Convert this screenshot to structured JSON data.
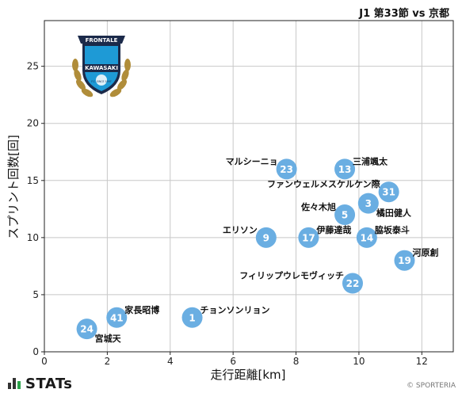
{
  "header": {
    "match": "J1 第33節 vs 京都"
  },
  "branding": {
    "stats": "STATs",
    "credit": "© SPORTERIA"
  },
  "crest": {
    "top_text": "FRONTALE",
    "name": "KAWASAKI",
    "small": "F.C. SINCE 1997"
  },
  "colors": {
    "point": "#6aaee2",
    "grid": "#c8c8c8",
    "axis": "#222222",
    "crest_blue": "#1e9ad6",
    "crest_navy": "#1b2a4a",
    "crest_gold": "#b08d3a"
  },
  "chart_data": {
    "type": "scatter",
    "xlabel": "走行距離[km]",
    "ylabel": "スプリント回数[回]",
    "xlim": [
      0,
      13
    ],
    "ylim": [
      0,
      29
    ],
    "xticks": [
      0,
      2,
      4,
      6,
      8,
      10,
      12
    ],
    "yticks": [
      0,
      5,
      10,
      15,
      20,
      25
    ],
    "grid": true,
    "points": [
      {
        "number": "23",
        "name": "マルシーニョ",
        "x": 7.7,
        "y": 16,
        "label_pos": "left-up"
      },
      {
        "number": "13",
        "name": "三浦颯太",
        "x": 9.55,
        "y": 16,
        "label_pos": "right-up"
      },
      {
        "number": "31",
        "name": "ファンウェルメスケルケン際",
        "x": 10.95,
        "y": 14,
        "label_pos": "left-up"
      },
      {
        "number": "3",
        "name": "橘田健人",
        "x": 10.3,
        "y": 13,
        "label_pos": "right-down"
      },
      {
        "number": "5",
        "name": "佐々木旭",
        "x": 9.55,
        "y": 12,
        "label_pos": "left-up"
      },
      {
        "number": "9",
        "name": "エリソン",
        "x": 7.05,
        "y": 10,
        "label_pos": "left-up"
      },
      {
        "number": "17",
        "name": "伊藤達哉",
        "x": 8.4,
        "y": 10,
        "label_pos": "right-up"
      },
      {
        "number": "14",
        "name": "脇坂泰斗",
        "x": 10.25,
        "y": 10,
        "label_pos": "right-up"
      },
      {
        "number": "19",
        "name": "河原創",
        "x": 11.45,
        "y": 8,
        "label_pos": "right-up"
      },
      {
        "number": "22",
        "name": "フィリップウレモヴィッチ",
        "x": 9.8,
        "y": 6,
        "label_pos": "left-up"
      },
      {
        "number": "1",
        "name": "チョンソンリョン",
        "x": 4.7,
        "y": 3,
        "label_pos": "right-up"
      },
      {
        "number": "41",
        "name": "家長昭博",
        "x": 2.3,
        "y": 3,
        "label_pos": "right-up"
      },
      {
        "number": "24",
        "name": "宮城天",
        "x": 1.35,
        "y": 2,
        "label_pos": "right-down"
      }
    ]
  }
}
